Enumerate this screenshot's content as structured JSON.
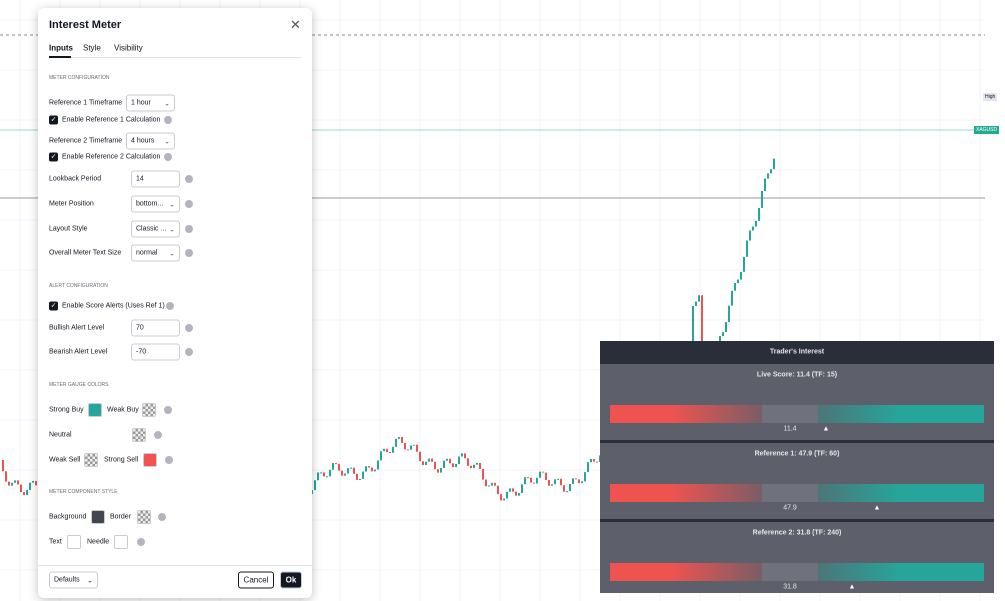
{
  "dialog": {
    "title": "Interest Meter",
    "tabs": [
      "Inputs",
      "Style",
      "Visibility"
    ],
    "meter_configuration": {
      "heading": "METER CONFIGURATION",
      "ref1_timeframe": {
        "label": "Reference 1 Timeframe",
        "value": "1 hour"
      },
      "ref1_enable": "Enable Reference 1 Calculation",
      "ref2_timeframe": {
        "label": "Reference 2 Timeframe",
        "value": "4 hours"
      },
      "ref2_enable": "Enable Reference 2 Calculation",
      "lookback": {
        "label": "Lookback Period",
        "value": 14
      },
      "meter_position": {
        "label": "Meter Position",
        "value": "bottom..."
      },
      "layout_style": {
        "label": "Layout Style",
        "value": "Classic ..."
      },
      "text_size": {
        "label": "Overall Meter Text Size",
        "value": "normal"
      }
    },
    "alert_configuration": {
      "heading": "ALERT CONFIGURATION",
      "enable": "Enable Score Alerts (Uses Ref 1)",
      "bullish": {
        "label": "Bullish Alert Level",
        "value": 70
      },
      "bearish": {
        "label": "Bearish Alert Level",
        "value": -70
      }
    },
    "gauge_colors": {
      "heading": "METER GAUGE COLORS",
      "strong_buy": "Strong Buy",
      "weak_buy": "Weak Buy",
      "neutral": "Neutral",
      "weak_sell": "Weak Sell",
      "strong_sell": "Strong Sell"
    },
    "component_style": {
      "heading": "METER COMPONENT STYLE",
      "background": "Background",
      "border": "Border",
      "text": "Text",
      "needle": "Needle"
    },
    "footer": {
      "defaults": "Defaults",
      "cancel": "Cancel",
      "ok": "Ok"
    }
  },
  "price_axis": {
    "high_tag": "High",
    "symbol_tag": "XAGUSD"
  },
  "meter": {
    "title": "Trader's Interest",
    "blocks": [
      {
        "label": "Live Score: 11.4 (TF: 15)",
        "value": 11.4
      },
      {
        "label": "Reference 1: 47.9 (TF: 60)",
        "value": 47.9
      },
      {
        "label": "Reference 2: 31.8 (TF: 240)",
        "value": 31.8
      }
    ]
  }
}
